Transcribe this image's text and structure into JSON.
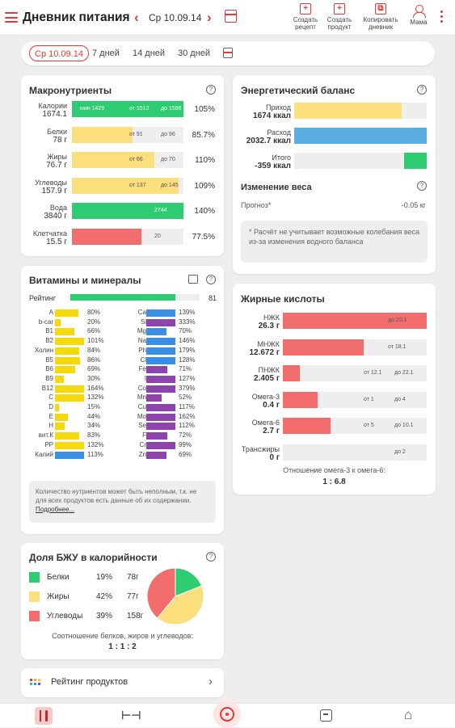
{
  "header": {
    "title": "Дневник питания",
    "date": "Ср 10.09.14",
    "tools": [
      {
        "label1": "Создать",
        "label2": "рецепт",
        "icon": "recipe-icon"
      },
      {
        "label1": "Создать",
        "label2": "продукт",
        "icon": "product-icon"
      },
      {
        "label1": "Копировать",
        "label2": "дневник",
        "icon": "copy-icon"
      },
      {
        "label1": "Мама",
        "label2": "",
        "icon": "user-icon"
      }
    ]
  },
  "period_tabs": [
    "Ср 10.09.14",
    "7 дней",
    "14 дней",
    "30 дней"
  ],
  "macro": {
    "title": "Макронутриенты",
    "rows": [
      {
        "l1": "Калории",
        "l2": "1674.1",
        "pct": "105%",
        "frac": 1.0,
        "color": "#2ecc71",
        "m1": "мин 1429",
        "m2": "от 1512",
        "m3": "до 1596",
        "m3w": true
      },
      {
        "l1": "Белки",
        "l2": "78 г",
        "pct": "85.7%",
        "frac": 0.54,
        "color": "#fbdf7c",
        "m1": "",
        "m2": "от 91",
        "m3": "до 96"
      },
      {
        "l1": "Жиры",
        "l2": "76.7 г",
        "pct": "110%",
        "frac": 0.74,
        "color": "#fbdf7c",
        "m1": "",
        "m2": "от 66",
        "m3": "до 70"
      },
      {
        "l1": "Углеводы",
        "l2": "157.9 г",
        "pct": "109%",
        "frac": 0.96,
        "color": "#fbdf7c",
        "m1": "",
        "m2": "от 137",
        "m3": "до 145"
      },
      {
        "l1": "Вода",
        "l2": "3840 г",
        "pct": "140%",
        "frac": 1.0,
        "color": "#2ecc71",
        "m1": "",
        "m2": "2744",
        "m3": ""
      },
      {
        "l1": "Клетчатка",
        "l2": "15.5 г",
        "pct": "77.5%",
        "frac": 0.62,
        "color": "#f26d6d",
        "m1": "",
        "m2": "20",
        "m3": ""
      }
    ]
  },
  "energy": {
    "title": "Энергетический баланс",
    "rows": [
      {
        "l1": "Приход",
        "l2": "1674 ккал",
        "color": "#fbdf7c",
        "frac": 0.81
      },
      {
        "l1": "Расход",
        "l2": "2032.7 ккал",
        "color": "#5aaee0",
        "frac": 1.0
      },
      {
        "l1": "Итого",
        "l2": "-359 ккал",
        "color": "#2ecc71",
        "frac": 0.17
      }
    ],
    "weight_title": "Изменение веса",
    "forecast_label": "Прогноз*",
    "forecast_value": "-0.05 кг",
    "note": "* Расчёт не учитывает возможные колебания веса из-за изменения водного баланса"
  },
  "vitamins": {
    "title": "Витамины и минералы",
    "rating_label": "Рейтинг",
    "rating_value": "81",
    "rating_frac": 0.81,
    "left": [
      {
        "n": "A",
        "p": "80%",
        "f": 0.8,
        "c": "#f5d90a"
      },
      {
        "n": "b-car",
        "p": "20%",
        "f": 0.2,
        "c": "#f5d90a"
      },
      {
        "n": "B1",
        "p": "66%",
        "f": 0.66,
        "c": "#f5d90a"
      },
      {
        "n": "B2",
        "p": "101%",
        "f": 1.0,
        "c": "#f5d90a"
      },
      {
        "n": "Холин",
        "p": "84%",
        "f": 0.84,
        "c": "#f5d90a"
      },
      {
        "n": "B5",
        "p": "86%",
        "f": 0.86,
        "c": "#f5d90a"
      },
      {
        "n": "B6",
        "p": "69%",
        "f": 0.69,
        "c": "#f5d90a"
      },
      {
        "n": "B9",
        "p": "30%",
        "f": 0.3,
        "c": "#f5d90a"
      },
      {
        "n": "B12",
        "p": "164%",
        "f": 1.0,
        "c": "#f5d90a"
      },
      {
        "n": "C",
        "p": "132%",
        "f": 1.0,
        "c": "#f5d90a"
      },
      {
        "n": "D",
        "p": "15%",
        "f": 0.15,
        "c": "#f5d90a"
      },
      {
        "n": "E",
        "p": "44%",
        "f": 0.44,
        "c": "#f5d90a"
      },
      {
        "n": "H",
        "p": "34%",
        "f": 0.34,
        "c": "#f5d90a"
      },
      {
        "n": "вит.К",
        "p": "83%",
        "f": 0.83,
        "c": "#f5d90a"
      },
      {
        "n": "PP",
        "p": "132%",
        "f": 1.0,
        "c": "#f5d90a"
      },
      {
        "n": "Калий",
        "p": "113%",
        "f": 1.0,
        "c": "#3a8ee6"
      }
    ],
    "right": [
      {
        "n": "Ca",
        "p": "139%",
        "f": 1.0,
        "c": "#3a8ee6"
      },
      {
        "n": "Si",
        "p": "333%",
        "f": 1.0,
        "c": "#8e44ad"
      },
      {
        "n": "Mg",
        "p": "70%",
        "f": 0.7,
        "c": "#3a8ee6"
      },
      {
        "n": "Na",
        "p": "146%",
        "f": 1.0,
        "c": "#3a8ee6"
      },
      {
        "n": "Ph",
        "p": "179%",
        "f": 1.0,
        "c": "#3a8ee6"
      },
      {
        "n": "Cl",
        "p": "128%",
        "f": 1.0,
        "c": "#3a8ee6"
      },
      {
        "n": "Fe",
        "p": "71%",
        "f": 0.71,
        "c": "#8e44ad"
      },
      {
        "n": "I",
        "p": "127%",
        "f": 1.0,
        "c": "#8e44ad"
      },
      {
        "n": "Co",
        "p": "379%",
        "f": 1.0,
        "c": "#8e44ad"
      },
      {
        "n": "Mn",
        "p": "52%",
        "f": 0.52,
        "c": "#8e44ad"
      },
      {
        "n": "Cu",
        "p": "117%",
        "f": 1.0,
        "c": "#8e44ad"
      },
      {
        "n": "Mo",
        "p": "162%",
        "f": 1.0,
        "c": "#8e44ad"
      },
      {
        "n": "Se",
        "p": "112%",
        "f": 1.0,
        "c": "#8e44ad"
      },
      {
        "n": "F",
        "p": "72%",
        "f": 0.72,
        "c": "#8e44ad"
      },
      {
        "n": "Cr",
        "p": "99%",
        "f": 0.99,
        "c": "#8e44ad"
      },
      {
        "n": "Zn",
        "p": "69%",
        "f": 0.69,
        "c": "#8e44ad"
      }
    ],
    "note_text": "Количество нутриентов может быть неполным, т.к. не для всех продуктов есть данные об их содержании. ",
    "note_link": "Подробнее..."
  },
  "fatty": {
    "title": "Жирные кислоты",
    "rows": [
      {
        "l1": "НЖК",
        "l2": "26.3 г",
        "frac": 1.0,
        "m1": "",
        "m2": "до 20.1"
      },
      {
        "l1": "МНЖК",
        "l2": "12.672 г",
        "frac": 0.56,
        "m1": "от 18.1",
        "m2": ""
      },
      {
        "l1": "ПНЖК",
        "l2": "2.405 г",
        "frac": 0.12,
        "m1": "от 12.1",
        "m2": "до 22.1"
      },
      {
        "l1": "Омега-3",
        "l2": "0.4 г",
        "frac": 0.24,
        "m1": "от 1",
        "m2": "до 4"
      },
      {
        "l1": "Омега-6",
        "l2": "2.7 г",
        "frac": 0.33,
        "m1": "от 5",
        "m2": "до 10.1"
      },
      {
        "l1": "Трансжиры",
        "l2": "0 г",
        "frac": 0,
        "m1": "",
        "m2": "до 2"
      }
    ],
    "ratio_label": "Отношение омега-3 к омега-6:",
    "ratio_value": "1 : 6.8",
    "bar_color": "#f26d6d"
  },
  "bju": {
    "title": "Доля БЖУ в калорийности",
    "legend": [
      {
        "name": "Белки",
        "pct": "19%",
        "grams": "78г",
        "color": "#2ecc71"
      },
      {
        "name": "Жиры",
        "pct": "42%",
        "grams": "77г",
        "color": "#fbdf7c"
      },
      {
        "name": "Углеводы",
        "pct": "39%",
        "grams": "158г",
        "color": "#f26d6d"
      }
    ],
    "ratio_label": "Соотношение белков, жиров и углеводов:",
    "ratio_value": "1 : 1 : 2"
  },
  "chart_data": {
    "type": "pie",
    "title": "Доля БЖУ в калорийности",
    "categories": [
      "Белки",
      "Жиры",
      "Углеводы"
    ],
    "values": [
      19,
      42,
      39
    ],
    "colors": [
      "#2ecc71",
      "#fbdf7c",
      "#f26d6d"
    ]
  },
  "rating_link": "Рейтинг продуктов",
  "bottom_nav": [
    "food-icon",
    "fitness-icon",
    "add-icon",
    "diary-icon",
    "home-icon"
  ]
}
